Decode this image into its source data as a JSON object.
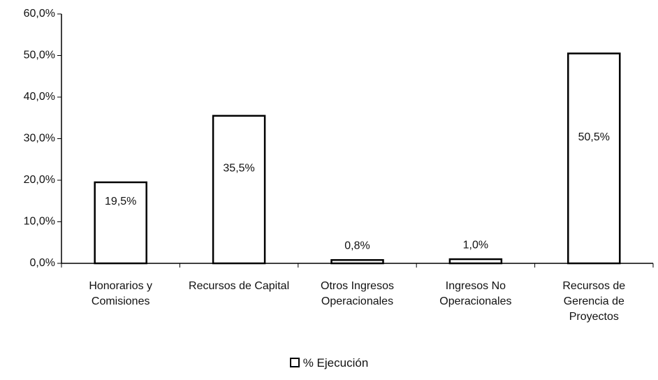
{
  "chart_data": {
    "type": "bar",
    "categories": [
      "Honorarios y Comisiones",
      "Recursos de Capital",
      "Otros Ingresos Operacionales",
      "Ingresos No Operacionales",
      "Recursos de Gerencia de Proyectos"
    ],
    "series": [
      {
        "name": "% Ejecución",
        "color": "#ffffff",
        "values": [
          19.5,
          35.5,
          0.8,
          1.0,
          50.5
        ],
        "value_labels": [
          "19,5%",
          "35,5%",
          "0,8%",
          "1,0%",
          "50,5%"
        ]
      }
    ],
    "ylim": [
      0,
      60
    ],
    "yticks": [
      {
        "value": 0,
        "label": "0,0%"
      },
      {
        "value": 10,
        "label": "10,0%"
      },
      {
        "value": 20,
        "label": "20,0%"
      },
      {
        "value": 30,
        "label": "30,0%"
      },
      {
        "value": 40,
        "label": "40,0%"
      },
      {
        "value": 50,
        "label": "50,0%"
      },
      {
        "value": 60,
        "label": "60,0%"
      }
    ],
    "legend": "bottom"
  }
}
